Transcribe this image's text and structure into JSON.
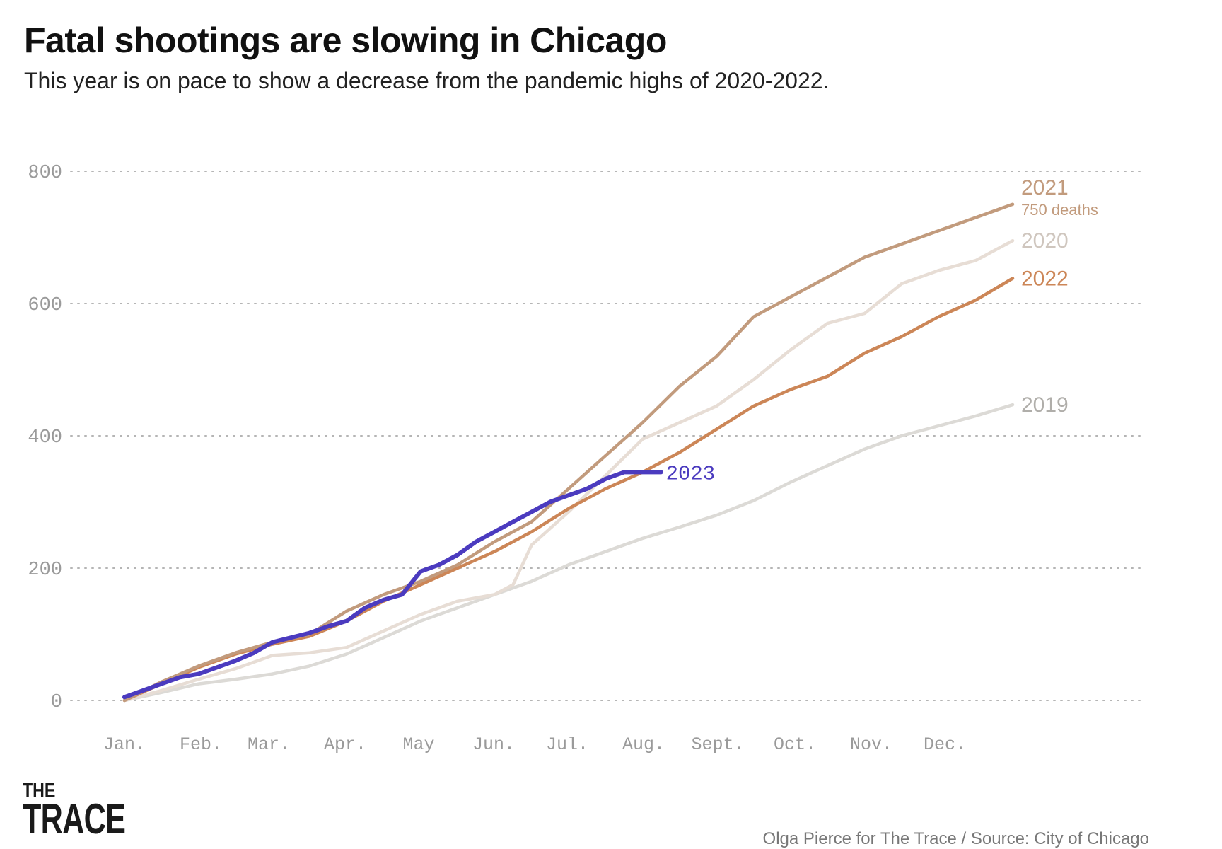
{
  "title": "Fatal shootings are slowing in Chicago",
  "subtitle": "This year is on pace to show a decrease from the pandemic highs of 2020-2022.",
  "credit": "Olga Pierce for The Trace / Source: City of Chicago",
  "logo": {
    "top": "THE",
    "main": "TRACE"
  },
  "chart_data": {
    "type": "line",
    "title": "Fatal shootings are slowing in Chicago",
    "xlabel": "",
    "ylabel": "",
    "ylim": [
      0,
      800
    ],
    "yticks": [
      0,
      200,
      400,
      600,
      800
    ],
    "xlim": [
      0,
      12
    ],
    "x_month_labels": [
      "Jan.",
      "Feb.",
      "Mar.",
      "Apr.",
      "May",
      "Jun.",
      "Jul.",
      "Aug.",
      "Sept.",
      "Oct.",
      "Nov.",
      "Dec."
    ],
    "grid": true,
    "series": [
      {
        "name": "2019",
        "label": "2019",
        "color": "#dcdad6",
        "label_color": "#b0aeaa",
        "x": [
          0,
          0.5,
          1,
          1.5,
          2,
          2.5,
          3,
          3.5,
          4,
          4.5,
          5,
          5.5,
          6,
          6.5,
          7,
          7.5,
          8,
          8.5,
          9,
          9.5,
          10,
          10.5,
          11,
          11.5,
          12
        ],
        "y": [
          0,
          12,
          25,
          32,
          40,
          52,
          70,
          95,
          120,
          140,
          160,
          180,
          205,
          225,
          245,
          262,
          280,
          302,
          330,
          355,
          380,
          400,
          415,
          430,
          447
        ]
      },
      {
        "name": "2020",
        "label": "2020",
        "color": "#e7ddd5",
        "label_color": "#cfc6be",
        "x": [
          0,
          0.5,
          1,
          1.5,
          2,
          2.5,
          3,
          3.5,
          4,
          4.5,
          5,
          5.25,
          5.5,
          6,
          6.5,
          7,
          7.5,
          8,
          8.5,
          9,
          9.5,
          10,
          10.5,
          11,
          11.5,
          12
        ],
        "y": [
          0,
          15,
          32,
          48,
          68,
          72,
          80,
          105,
          130,
          150,
          160,
          175,
          235,
          285,
          340,
          395,
          420,
          445,
          485,
          530,
          570,
          585,
          630,
          650,
          665,
          695
        ]
      },
      {
        "name": "2021",
        "label": "2021",
        "note": "750 deaths",
        "color": "#c29b7d",
        "label_color": "#c29b7d",
        "x": [
          0,
          0.5,
          1,
          1.5,
          2,
          2.5,
          3,
          3.5,
          4,
          4.5,
          5,
          5.5,
          6,
          6.5,
          7,
          7.5,
          8,
          8.5,
          9,
          9.5,
          10,
          10.5,
          11,
          11.5,
          12
        ],
        "y": [
          0,
          28,
          52,
          72,
          88,
          100,
          135,
          160,
          180,
          205,
          240,
          270,
          320,
          370,
          420,
          475,
          520,
          580,
          610,
          640,
          670,
          690,
          710,
          730,
          750
        ]
      },
      {
        "name": "2022",
        "label": "2022",
        "color": "#cc8657",
        "label_color": "#cc8657",
        "x": [
          0,
          0.5,
          1,
          1.5,
          2,
          2.5,
          3,
          3.5,
          4,
          4.5,
          5,
          5.5,
          6,
          6.5,
          7,
          7.5,
          8,
          8.5,
          9,
          9.5,
          10,
          10.5,
          11,
          11.5,
          12
        ],
        "y": [
          0,
          25,
          50,
          70,
          85,
          97,
          120,
          150,
          175,
          200,
          225,
          255,
          290,
          320,
          345,
          375,
          410,
          445,
          470,
          490,
          525,
          550,
          580,
          605,
          638
        ]
      },
      {
        "name": "2023",
        "label": "2023",
        "color": "#4b3bbf",
        "label_color": "#4b3bbf",
        "x": [
          0,
          0.25,
          0.5,
          0.75,
          1,
          1.25,
          1.5,
          1.75,
          2,
          2.25,
          2.5,
          2.75,
          3,
          3.25,
          3.5,
          3.75,
          4,
          4.25,
          4.5,
          4.75,
          5,
          5.25,
          5.5,
          5.75,
          6,
          6.25,
          6.5,
          6.75,
          7,
          7.25,
          7.2
        ],
        "y": [
          5,
          15,
          25,
          35,
          40,
          50,
          60,
          72,
          88,
          95,
          102,
          112,
          120,
          140,
          152,
          160,
          195,
          205,
          220,
          240,
          255,
          270,
          285,
          300,
          310,
          320,
          335,
          345,
          345,
          345,
          345
        ]
      }
    ]
  }
}
